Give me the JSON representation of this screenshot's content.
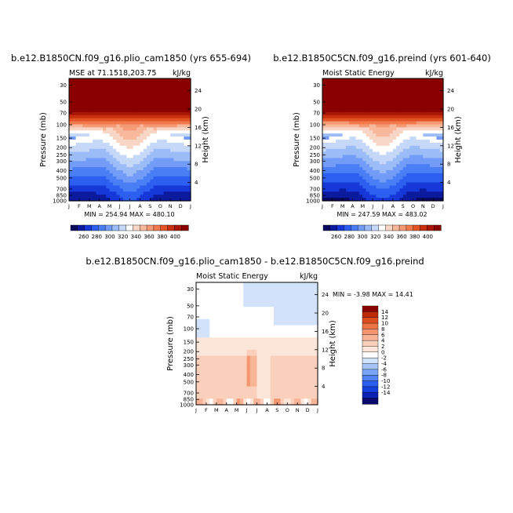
{
  "months": [
    "J",
    "F",
    "M",
    "A",
    "M",
    "J",
    "J",
    "A",
    "S",
    "O",
    "N",
    "D",
    "J"
  ],
  "pressure_ticks": [
    "30",
    "50",
    "70",
    "100",
    "150",
    "200",
    "250",
    "300",
    "400",
    "500",
    "700",
    "850",
    "1000"
  ],
  "height_ticks": [
    "4",
    "8",
    "12",
    "16",
    "20",
    "24"
  ],
  "pressure_label": "Pressure (mb)",
  "height_label": "Height (km)",
  "colors": {
    "mse_palette": [
      "#08085c",
      "#0c1a9e",
      "#1638d8",
      "#2c5ef0",
      "#4a7ef5",
      "#729cf7",
      "#9cbcf8",
      "#c6d8f8",
      "#ffffff",
      "#f8d6c6",
      "#f7b89c",
      "#f59a74",
      "#f07a4e",
      "#e25426",
      "#c8300e",
      "#a81606",
      "#8a0000"
    ],
    "diff_palette": [
      "#0a0a6c",
      "#0c22b4",
      "#1640de",
      "#2c5ef0",
      "#5082f4",
      "#7aa4f6",
      "#a6c4f8",
      "#d2e2fa",
      "#ffffff",
      "#fce6da",
      "#fad0bc",
      "#f8b496",
      "#f49670",
      "#ec7446",
      "#dc4e20",
      "#bc2a08",
      "#8a0000"
    ]
  },
  "chart_data": [
    {
      "type": "heatmap",
      "title": "b.e12.B1850CN.f09_g16.plio_cam1850 (yrs 655-694)",
      "subtitle_left": "MSE at 71.1518,203.75",
      "subtitle_right": "kJ/kg",
      "stats": "MIN = 254.94 MAX = 480.10",
      "min": 254.94,
      "max": 480.1,
      "xlabel": "",
      "ylabel": "Pressure (mb)",
      "y2label": "Height (km)"
    },
    {
      "type": "heatmap",
      "title": "b.e12.B1850C5CN.f09_g16.preind (yrs 601-640)",
      "subtitle_left": "Moist Static Energy",
      "subtitle_right": "kJ/kg",
      "stats": "MIN = 247.59 MAX = 483.02",
      "min": 247.59,
      "max": 483.02,
      "xlabel": "",
      "ylabel": "Pressure (mb)",
      "y2label": "Height (km)"
    },
    {
      "type": "heatmap",
      "title": "b.e12.B1850CN.f09_g16.plio_cam1850 - b.e12.B1850C5CN.f09_g16.preind",
      "subtitle_left": "Moist Static Energy",
      "subtitle_right": "kJ/kg",
      "stats": "MIN = -3.98 MAX = 14.41",
      "min": -3.98,
      "max": 14.41,
      "xlabel": "",
      "ylabel": "Pressure (mb)",
      "y2label": "Height (km)"
    }
  ],
  "colorbar_top": {
    "labels": [
      "260",
      "280",
      "300",
      "320",
      "340",
      "360",
      "380",
      "400"
    ],
    "labels_upper": [
      "260",
      "280",
      "300",
      "320",
      "340",
      "360",
      "380",
      "400"
    ]
  },
  "colorbar_diff": {
    "labels": [
      "14",
      "12",
      "10",
      "8",
      "6",
      "4",
      "2",
      "0",
      "-2",
      "-4",
      "-6",
      "-8",
      "-10",
      "-12",
      "-14"
    ]
  }
}
